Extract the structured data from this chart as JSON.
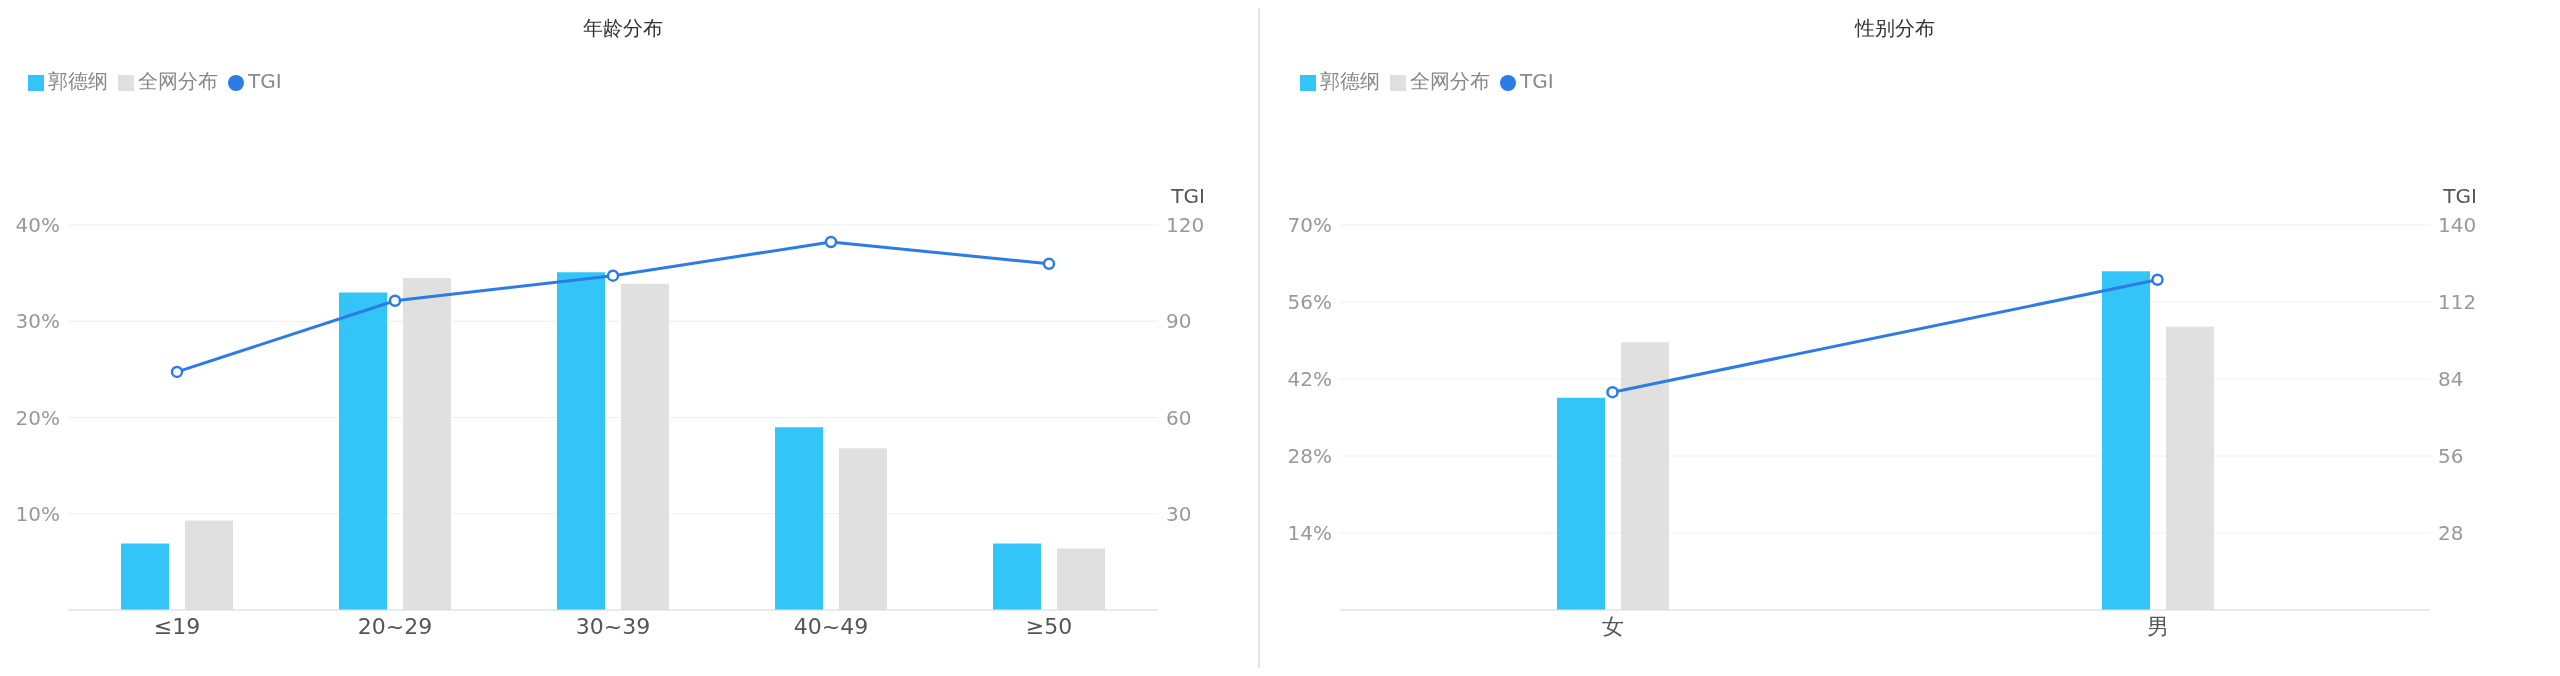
{
  "chart_data": [
    {
      "type": "bar",
      "title": "年龄分布",
      "y2label": "TGI",
      "categories": [
        "≤19",
        "20~29",
        "30~39",
        "40~49",
        "≥50"
      ],
      "series": [
        {
          "name": "郭德纲",
          "color": "#33c5f8",
          "values": [
            6.9,
            33.0,
            35.1,
            19.0,
            6.9
          ]
        },
        {
          "name": "全网分布",
          "color": "#e0e0e0",
          "values": [
            9.3,
            34.5,
            33.9,
            16.8,
            6.4
          ]
        },
        {
          "name": "TGI",
          "type": "line",
          "axis": "y2",
          "color": "#2d7be5",
          "values": [
            74.2,
            96.4,
            104.2,
            114.7,
            107.9
          ]
        }
      ],
      "ylim": [
        0,
        40
      ],
      "yticks": [
        {
          "value": 0,
          "label": null
        },
        {
          "value": 10,
          "label": "10%"
        },
        {
          "value": 20,
          "label": "20%"
        },
        {
          "value": 30,
          "label": "30%"
        },
        {
          "value": 40,
          "label": "40%"
        }
      ],
      "y2lim": [
        0,
        120
      ],
      "y2ticks": [
        30,
        60,
        90,
        120
      ],
      "grid": "y",
      "legend": "top left",
      "marker": "circle",
      "line_style": "solid"
    },
    {
      "type": "bar",
      "title": "性别分布",
      "y2label": "TGI",
      "categories": [
        "女",
        "男"
      ],
      "series": [
        {
          "name": "郭德纲",
          "color": "#33c5f8",
          "values": [
            38.6,
            61.6
          ]
        },
        {
          "name": "全网分布",
          "color": "#e0e0e0",
          "values": [
            48.7,
            51.5
          ]
        },
        {
          "name": "TGI",
          "type": "line",
          "axis": "y2",
          "color": "#2d7be5",
          "values": [
            79.2,
            120.1
          ]
        }
      ],
      "ylim": [
        0,
        70
      ],
      "yticks": [
        {
          "value": 0,
          "label": null
        },
        {
          "value": 14,
          "label": "14%"
        },
        {
          "value": 28,
          "label": "28%"
        },
        {
          "value": 42,
          "label": "42%"
        },
        {
          "value": 56,
          "label": "56%"
        },
        {
          "value": 70,
          "label": "70%"
        }
      ],
      "y2lim": [
        0,
        140
      ],
      "y2ticks": [
        28,
        56,
        84,
        112,
        140
      ],
      "grid": "y",
      "legend": "top left",
      "marker": "circle",
      "line_style": "solid"
    }
  ]
}
